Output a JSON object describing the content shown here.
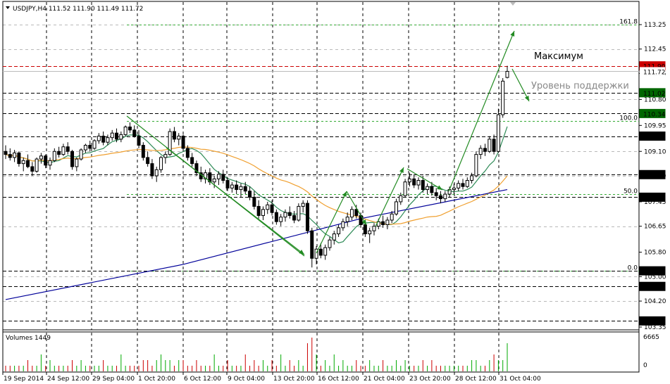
{
  "chart_data": {
    "type": "candlestick",
    "symbol_header": "USDJPY,H4  111.52 111.90 111.49 111.72",
    "price_ylim": [
      103.35,
      113.35
    ],
    "price_ticks": [
      "113.25",
      "112.45",
      "111.65",
      "110.80",
      "109.95",
      "109.10",
      "108.30",
      "107.45",
      "106.65",
      "105.80",
      "105.00",
      "104.20",
      "103.35"
    ],
    "price_tags": [
      {
        "value": 111.9,
        "text": "111.90",
        "bg": "#cc0000",
        "fg": "#ffffff"
      },
      {
        "value": 111.02,
        "text": "111.02",
        "bg": "#006600",
        "fg": "#ffffff"
      },
      {
        "value": 110.34,
        "text": "110.34",
        "bg": "#006600",
        "fg": "#ffffff"
      },
      {
        "value": 109.6,
        "text": "109.60",
        "bg": "#000000",
        "fg": "#ffffff"
      },
      {
        "value": 108.34,
        "text": "108.34",
        "bg": "#000000",
        "fg": "#ffffff"
      },
      {
        "value": 107.6,
        "text": "107.60",
        "bg": "#000000",
        "fg": "#ffffff"
      },
      {
        "value": 105.19,
        "text": "105.19",
        "bg": "#000000",
        "fg": "#ffffff"
      },
      {
        "value": 104.68,
        "text": "104.68",
        "bg": "#000000",
        "fg": "#ffffff"
      },
      {
        "value": 103.55,
        "text": "103.55",
        "bg": "#000000",
        "fg": "#ffffff"
      },
      {
        "value": 111.72,
        "text": "111.72",
        "bg": "#ffffff",
        "fg": "#000000"
      }
    ],
    "horizontal_levels": [
      {
        "value": 111.9,
        "color": "#cc0000"
      },
      {
        "value": 111.02,
        "color": "#000000"
      },
      {
        "value": 110.34,
        "color": "#000000"
      },
      {
        "value": 109.6,
        "color": "#000000"
      },
      {
        "value": 108.34,
        "color": "#000000"
      },
      {
        "value": 107.6,
        "color": "#000000"
      },
      {
        "value": 105.19,
        "color": "#000000"
      },
      {
        "value": 104.68,
        "color": "#000000"
      },
      {
        "value": 103.55,
        "color": "#000000"
      }
    ],
    "fibo_levels": [
      {
        "value": 113.25,
        "label": "161.8"
      },
      {
        "value": 110.1,
        "label": "100.0"
      },
      {
        "value": 107.7,
        "label": "50.0"
      },
      {
        "value": 105.2,
        "label": "0.0"
      }
    ],
    "x_labels": [
      "19 Sep 2014",
      "24 Sep 12:00",
      "29 Sep 04:00",
      "1 Oct 20:00",
      "6 Oct 12:00",
      "9 Oct 04:00",
      "13 Oct 20:00",
      "16 Oct 12:00",
      "21 Oct 04:00",
      "23 Oct 20:00",
      "28 Oct 12:00",
      "31 Oct 04:00"
    ],
    "annotations": {
      "max_label": "Максимум",
      "support_label": "Уровень поддержки"
    },
    "candles": [
      [
        109.1,
        109.3,
        108.85,
        109.0
      ],
      [
        109.0,
        109.2,
        108.8,
        108.9
      ],
      [
        108.9,
        109.15,
        108.75,
        109.05
      ],
      [
        109.05,
        109.1,
        108.6,
        108.7
      ],
      [
        108.7,
        108.9,
        108.45,
        108.8
      ],
      [
        108.8,
        109.0,
        108.55,
        108.6
      ],
      [
        108.6,
        108.75,
        108.3,
        108.45
      ],
      [
        108.45,
        108.9,
        108.4,
        108.85
      ],
      [
        108.85,
        109.05,
        108.7,
        108.95
      ],
      [
        108.95,
        109.0,
        108.55,
        108.65
      ],
      [
        108.65,
        108.9,
        108.5,
        108.8
      ],
      [
        108.8,
        109.2,
        108.75,
        109.1
      ],
      [
        109.1,
        109.25,
        108.9,
        109.0
      ],
      [
        109.0,
        109.35,
        108.95,
        109.25
      ],
      [
        109.25,
        109.4,
        109.0,
        109.1
      ],
      [
        109.1,
        109.15,
        108.5,
        108.6
      ],
      [
        108.6,
        108.9,
        108.45,
        108.85
      ],
      [
        108.85,
        109.2,
        108.8,
        109.15
      ],
      [
        109.15,
        109.35,
        109.05,
        109.3
      ],
      [
        109.3,
        109.45,
        109.1,
        109.2
      ],
      [
        109.2,
        109.5,
        109.15,
        109.45
      ],
      [
        109.45,
        109.7,
        109.35,
        109.6
      ],
      [
        109.6,
        109.75,
        109.3,
        109.4
      ],
      [
        109.4,
        109.65,
        109.3,
        109.55
      ],
      [
        109.55,
        109.8,
        109.45,
        109.7
      ],
      [
        109.7,
        109.85,
        109.4,
        109.5
      ],
      [
        109.5,
        109.75,
        109.4,
        109.65
      ],
      [
        109.65,
        109.95,
        109.6,
        109.9
      ],
      [
        109.9,
        110.05,
        109.7,
        109.8
      ],
      [
        109.8,
        109.95,
        109.55,
        109.6
      ],
      [
        109.6,
        109.8,
        109.2,
        109.3
      ],
      [
        109.3,
        109.4,
        108.8,
        108.9
      ],
      [
        108.9,
        109.1,
        108.6,
        108.7
      ],
      [
        108.7,
        108.85,
        108.2,
        108.3
      ],
      [
        108.3,
        108.6,
        108.1,
        108.5
      ],
      [
        108.5,
        108.95,
        108.4,
        108.9
      ],
      [
        108.9,
        109.1,
        108.7,
        109.0
      ],
      [
        109.0,
        109.85,
        108.95,
        109.75
      ],
      [
        109.75,
        109.9,
        109.4,
        109.5
      ],
      [
        109.5,
        109.7,
        109.3,
        109.6
      ],
      [
        109.6,
        109.65,
        109.1,
        109.2
      ],
      [
        109.2,
        109.3,
        108.8,
        108.9
      ],
      [
        108.9,
        109.05,
        108.6,
        108.7
      ],
      [
        108.7,
        108.8,
        108.3,
        108.4
      ],
      [
        108.4,
        108.6,
        108.1,
        108.2
      ],
      [
        108.2,
        108.5,
        108.05,
        108.4
      ],
      [
        108.4,
        108.55,
        108.0,
        108.1
      ],
      [
        108.1,
        108.3,
        107.9,
        108.2
      ],
      [
        108.2,
        108.45,
        108.0,
        108.35
      ],
      [
        108.35,
        108.5,
        108.05,
        108.15
      ],
      [
        108.15,
        108.25,
        107.8,
        107.9
      ],
      [
        107.9,
        108.1,
        107.75,
        108.0
      ],
      [
        108.0,
        108.15,
        107.7,
        107.85
      ],
      [
        107.85,
        108.05,
        107.6,
        107.95
      ],
      [
        107.95,
        108.1,
        107.7,
        107.8
      ],
      [
        107.8,
        107.95,
        107.5,
        107.6
      ],
      [
        107.6,
        107.8,
        107.2,
        107.3
      ],
      [
        107.3,
        107.5,
        106.9,
        107.0
      ],
      [
        107.0,
        107.3,
        106.85,
        107.2
      ],
      [
        107.2,
        107.45,
        107.05,
        107.35
      ],
      [
        107.35,
        107.5,
        107.0,
        107.1
      ],
      [
        107.1,
        107.2,
        106.7,
        106.8
      ],
      [
        106.8,
        107.05,
        106.65,
        106.95
      ],
      [
        106.95,
        107.2,
        106.8,
        107.1
      ],
      [
        107.1,
        107.3,
        106.9,
        107.0
      ],
      [
        107.0,
        107.15,
        106.75,
        106.85
      ],
      [
        106.85,
        107.4,
        106.8,
        107.3
      ],
      [
        107.3,
        107.5,
        107.1,
        107.4
      ],
      [
        107.4,
        107.5,
        106.4,
        106.5
      ],
      [
        106.5,
        106.6,
        105.3,
        105.6
      ],
      [
        105.6,
        106.0,
        105.4,
        105.9
      ],
      [
        105.9,
        106.1,
        105.6,
        105.7
      ],
      [
        105.7,
        106.05,
        105.55,
        105.95
      ],
      [
        105.95,
        106.3,
        105.85,
        106.2
      ],
      [
        106.2,
        106.5,
        106.05,
        106.4
      ],
      [
        106.4,
        106.7,
        106.3,
        106.6
      ],
      [
        106.6,
        106.9,
        106.5,
        106.8
      ],
      [
        106.8,
        107.1,
        106.65,
        106.95
      ],
      [
        106.95,
        107.3,
        106.85,
        107.2
      ],
      [
        107.2,
        107.35,
        106.9,
        107.0
      ],
      [
        107.0,
        107.1,
        106.6,
        106.7
      ],
      [
        106.7,
        106.85,
        106.3,
        106.4
      ],
      [
        106.4,
        106.6,
        106.1,
        106.5
      ],
      [
        106.5,
        106.75,
        106.35,
        106.65
      ],
      [
        106.65,
        106.9,
        106.55,
        106.8
      ],
      [
        106.8,
        107.0,
        106.6,
        106.7
      ],
      [
        106.7,
        106.95,
        106.55,
        106.85
      ],
      [
        106.85,
        107.15,
        106.75,
        107.05
      ],
      [
        107.05,
        107.55,
        107.0,
        107.45
      ],
      [
        107.45,
        107.75,
        107.35,
        107.65
      ],
      [
        107.65,
        108.2,
        107.6,
        108.1
      ],
      [
        108.1,
        108.4,
        107.95,
        108.2
      ],
      [
        108.2,
        108.35,
        107.9,
        108.0
      ],
      [
        108.0,
        108.25,
        107.85,
        108.15
      ],
      [
        108.15,
        108.3,
        107.75,
        107.85
      ],
      [
        107.85,
        108.05,
        107.7,
        107.95
      ],
      [
        107.95,
        108.1,
        107.65,
        107.75
      ],
      [
        107.75,
        107.9,
        107.5,
        107.65
      ],
      [
        107.65,
        107.8,
        107.4,
        107.55
      ],
      [
        107.55,
        107.8,
        107.45,
        107.7
      ],
      [
        107.7,
        107.95,
        107.6,
        107.85
      ],
      [
        107.85,
        108.05,
        107.7,
        107.9
      ],
      [
        107.9,
        108.15,
        107.8,
        108.05
      ],
      [
        108.05,
        108.2,
        107.85,
        107.95
      ],
      [
        107.95,
        108.25,
        107.9,
        108.15
      ],
      [
        108.15,
        108.4,
        108.05,
        108.3
      ],
      [
        108.3,
        109.1,
        108.25,
        109.0
      ],
      [
        109.0,
        109.3,
        108.85,
        109.2
      ],
      [
        109.2,
        109.35,
        108.95,
        109.1
      ],
      [
        109.1,
        109.6,
        109.05,
        109.5
      ],
      [
        109.5,
        109.65,
        109.0,
        109.1
      ],
      [
        109.1,
        110.5,
        109.05,
        110.3
      ],
      [
        110.3,
        111.5,
        110.2,
        111.4
      ],
      [
        111.52,
        111.9,
        111.49,
        111.72
      ]
    ],
    "volumes": [
      1,
      1,
      1,
      1,
      1,
      2,
      1,
      1,
      3,
      1,
      2,
      1,
      1,
      1,
      1,
      2,
      1,
      2,
      1,
      1,
      1,
      1,
      2,
      1,
      1,
      1,
      3,
      1,
      1,
      1,
      1,
      2,
      2,
      1,
      2,
      3,
      2,
      2,
      1,
      2,
      2,
      1,
      1,
      2,
      1,
      1,
      1,
      3,
      1,
      1,
      2,
      1,
      1,
      1,
      3,
      1,
      2,
      1,
      2,
      1,
      2,
      1,
      3,
      1,
      2,
      1,
      2,
      1,
      5,
      6,
      3,
      1,
      2,
      1,
      3,
      1,
      2,
      1,
      1,
      2,
      1,
      1,
      2,
      1,
      1,
      2,
      1,
      1,
      2,
      1,
      2,
      1,
      1,
      1,
      2,
      1,
      2,
      1,
      1,
      1,
      1,
      1,
      1,
      1,
      1,
      2,
      2,
      1,
      1,
      2,
      3,
      2,
      2,
      5
    ],
    "volume_header": "Volumes 1449",
    "volume_ticks": [
      "6665",
      "0"
    ]
  }
}
